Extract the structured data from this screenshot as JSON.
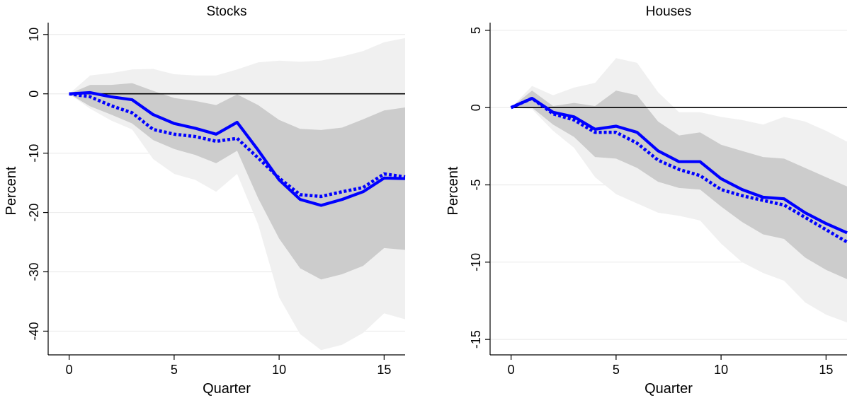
{
  "chart_data": [
    {
      "type": "line",
      "title": "Stocks",
      "xlabel": "Quarter",
      "ylabel": "Percent",
      "xlim": [
        -1,
        16
      ],
      "ylim": [
        -44,
        12
      ],
      "xticks": [
        0,
        5,
        10,
        15
      ],
      "yticks": [
        10,
        0,
        -10,
        -20,
        -30,
        -40
      ],
      "grid": "horizontal",
      "x": [
        0,
        1,
        2,
        3,
        4,
        5,
        6,
        7,
        8,
        9,
        10,
        11,
        12,
        13,
        14,
        15,
        16
      ],
      "series": [
        {
          "style": "solid",
          "color": "#0000ff",
          "values": [
            0,
            0.2,
            -0.5,
            -1,
            -3.5,
            -5,
            -5.8,
            -6.8,
            -4.8,
            -9.5,
            -14.5,
            -17.8,
            -18.8,
            -17.8,
            -16.5,
            -14.2,
            -14.3
          ]
        },
        {
          "style": "dotted",
          "color": "#0000ff",
          "values": [
            0,
            -0.5,
            -2,
            -3.2,
            -6,
            -6.8,
            -7.2,
            -8,
            -7.5,
            -10.8,
            -14.2,
            -17,
            -17.3,
            -16.5,
            -15.8,
            -13.5,
            -14
          ]
        }
      ],
      "bands": [
        {
          "color": "#f0f0f0",
          "upper": [
            0,
            3.1,
            3.5,
            4.1,
            4.2,
            3.3,
            3.1,
            3.1,
            4.1,
            5.3,
            5.6,
            5.4,
            5.6,
            6.3,
            7.2,
            8.7,
            9.4
          ],
          "lower": [
            0,
            -2.5,
            -4.5,
            -6,
            -11,
            -13.5,
            -14.5,
            -16.5,
            -13.5,
            -22,
            -34.3,
            -40.5,
            -43.2,
            -42.3,
            -40.3,
            -37,
            -38
          ]
        },
        {
          "color": "#cccccc",
          "upper": [
            0,
            1.5,
            1.5,
            1.8,
            0.5,
            -0.7,
            -1.2,
            -1.9,
            -0.1,
            -1.9,
            -4.4,
            -5.9,
            -6.1,
            -5.7,
            -4.3,
            -2.8,
            -2.3
          ],
          "lower": [
            0,
            -2.1,
            -3.5,
            -5,
            -7.8,
            -9.3,
            -10.3,
            -11.7,
            -9.6,
            -17.6,
            -24.4,
            -29.4,
            -31.3,
            -30.4,
            -29,
            -26,
            -26.3
          ]
        }
      ],
      "hline": 0
    },
    {
      "type": "line",
      "title": "Houses",
      "xlabel": "Quarter",
      "ylabel": "Percent",
      "xlim": [
        -1,
        16
      ],
      "ylim": [
        -16,
        5.5
      ],
      "xticks": [
        0,
        5,
        10,
        15
      ],
      "yticks": [
        5,
        0,
        -5,
        -10,
        -15
      ],
      "grid": "horizontal",
      "x": [
        0,
        1,
        2,
        3,
        4,
        5,
        6,
        7,
        8,
        9,
        10,
        11,
        12,
        13,
        14,
        15,
        16
      ],
      "series": [
        {
          "style": "solid",
          "color": "#0000ff",
          "values": [
            0,
            0.6,
            -0.3,
            -0.6,
            -1.4,
            -1.2,
            -1.6,
            -2.8,
            -3.5,
            -3.5,
            -4.6,
            -5.3,
            -5.8,
            -5.9,
            -6.8,
            -7.5,
            -8.1
          ]
        },
        {
          "style": "dotted",
          "color": "#0000ff",
          "values": [
            0,
            0.6,
            -0.4,
            -0.8,
            -1.6,
            -1.6,
            -2.3,
            -3.4,
            -4,
            -4.4,
            -5.3,
            -5.7,
            -6,
            -6.3,
            -7.1,
            -7.9,
            -8.7
          ]
        }
      ],
      "bands": [
        {
          "color": "#f0f0f0",
          "upper": [
            0,
            1.4,
            0.8,
            1.3,
            1.6,
            3.2,
            2.9,
            1,
            -0.3,
            -0.3,
            -0.6,
            -0.8,
            -1.1,
            -0.6,
            -0.9,
            -1.5,
            -2.2
          ],
          "lower": [
            0,
            -0.1,
            -1.5,
            -2.6,
            -4.5,
            -5.6,
            -6.2,
            -6.8,
            -7,
            -7.3,
            -8.8,
            -10,
            -10.7,
            -11.2,
            -12.6,
            -13.4,
            -13.9
          ]
        },
        {
          "color": "#cccccc",
          "upper": [
            0,
            1.1,
            0.1,
            0.3,
            0.1,
            1.1,
            0.8,
            -0.9,
            -1.8,
            -1.6,
            -2.4,
            -2.8,
            -3.2,
            -3.3,
            -3.9,
            -4.5,
            -5.1
          ]
        },
        {
          "color": "#aaaaaa",
          "placeholder": true
        }
      ],
      "hline": 0
    }
  ]
}
